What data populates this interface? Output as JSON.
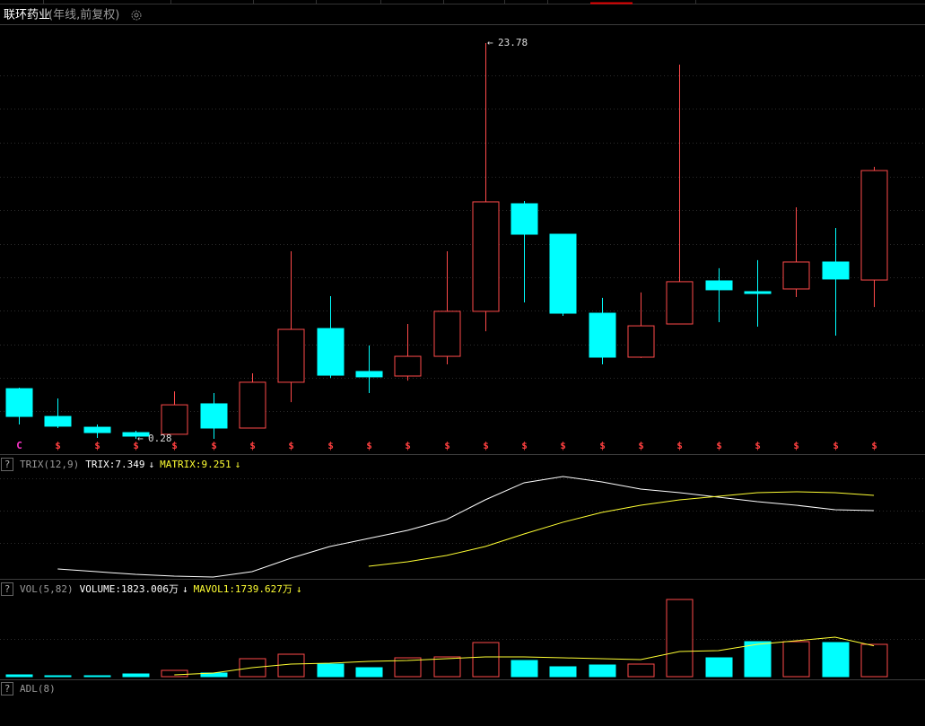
{
  "header": {
    "title": "联环药业",
    "subtitle": "(年线,前复权)"
  },
  "chart_data": [
    {
      "type": "candlestick",
      "up_color": "#ff4a4a",
      "down_color": "#00ffff",
      "open": [
        3.26,
        1.61,
        0.97,
        0.65,
        0.55,
        2.36,
        0.92,
        3.64,
        6.83,
        4.28,
        4.01,
        5.18,
        7.85,
        14.24,
        12.43,
        7.74,
        5.13,
        7.1,
        9.66,
        9.02,
        9.18,
        10.78,
        9.71
      ],
      "high": [
        3.32,
        2.68,
        1.13,
        0.76,
        3.1,
        3.0,
        4.17,
        11.42,
        8.75,
        5.82,
        7.1,
        11.42,
        23.78,
        14.4,
        12.43,
        8.65,
        8.97,
        22.5,
        10.41,
        10.89,
        14.03,
        12.8,
        16.43
      ],
      "low": [
        1.13,
        0.92,
        0.33,
        0.28,
        0.55,
        0.28,
        0.92,
        2.46,
        3.9,
        3.0,
        3.74,
        4.7,
        6.67,
        8.38,
        7.58,
        4.7,
        5.08,
        7.1,
        7.21,
        6.94,
        8.7,
        6.41,
        8.11
      ],
      "close": [
        1.61,
        1.03,
        0.65,
        0.44,
        2.3,
        0.92,
        3.64,
        6.78,
        4.06,
        3.96,
        5.18,
        7.85,
        14.35,
        12.43,
        7.74,
        5.13,
        6.99,
        9.61,
        9.13,
        8.91,
        10.78,
        9.77,
        16.21
      ],
      "markers": [
        "C",
        "$",
        "$",
        "$",
        "$",
        "$",
        "$",
        "$",
        "$",
        "$",
        "$",
        "$",
        "$",
        "$",
        "$",
        "$",
        "$",
        "$",
        "$",
        "$",
        "$",
        "$",
        "$"
      ],
      "marker_colors": {
        "C": "#ff33cc",
        "$": "#ff4040"
      },
      "annotations": [
        {
          "index": 12,
          "value": 23.78,
          "arrow": "←"
        },
        {
          "index": 3,
          "value": 0.28,
          "arrow": "←"
        }
      ]
    },
    {
      "type": "line",
      "help": "?",
      "indicator": "TRIX(12,9)",
      "series": [
        {
          "color": "#ffffff",
          "readout": "TRIX:7.349",
          "arrow": "↓",
          "values": [
            null,
            0.08,
            -0.26,
            -0.6,
            -0.82,
            -0.93,
            -0.26,
            1.42,
            2.87,
            3.88,
            4.89,
            6.23,
            8.69,
            10.82,
            11.6,
            10.93,
            10.04,
            9.59,
            9.03,
            8.47,
            8.02,
            7.46,
            7.349
          ]
        },
        {
          "color": "#ffff33",
          "readout": "MATRIX:9.251",
          "arrow": "↓",
          "values": [
            null,
            null,
            null,
            null,
            null,
            null,
            null,
            null,
            null,
            0.41,
            0.97,
            1.75,
            2.87,
            4.44,
            5.9,
            7.13,
            8.02,
            8.69,
            9.14,
            9.59,
            9.7,
            9.59,
            9.251
          ]
        }
      ]
    },
    {
      "type": "volume",
      "help": "?",
      "indicator": "VOL(5,82)",
      "series": [
        {
          "type": "bar",
          "color": "#ffffff",
          "readout": "VOLUME:1823.006万",
          "arrow": "↓",
          "values": [
            101,
            51,
            51,
            152,
            354,
            203,
            1013,
            1266,
            709,
            506,
            1063,
            1114,
            1924,
            911,
            557,
            658,
            709,
            4355,
            1063,
            1975,
            1975,
            1924,
            1823.006
          ]
        },
        {
          "type": "line",
          "color": "#ffff33",
          "readout": "MAVOL1:1739.627万",
          "arrow": "↓",
          "values": [
            null,
            null,
            null,
            null,
            101,
            203,
            506,
            709,
            760,
            861,
            912,
            1013,
            1114,
            1114,
            1063,
            1013,
            962,
            1418,
            1469,
            1823,
            2026,
            2228,
            1739.627
          ]
        }
      ]
    },
    {
      "type": "indicator",
      "help": "?",
      "indicator": "ADL(8)"
    }
  ]
}
